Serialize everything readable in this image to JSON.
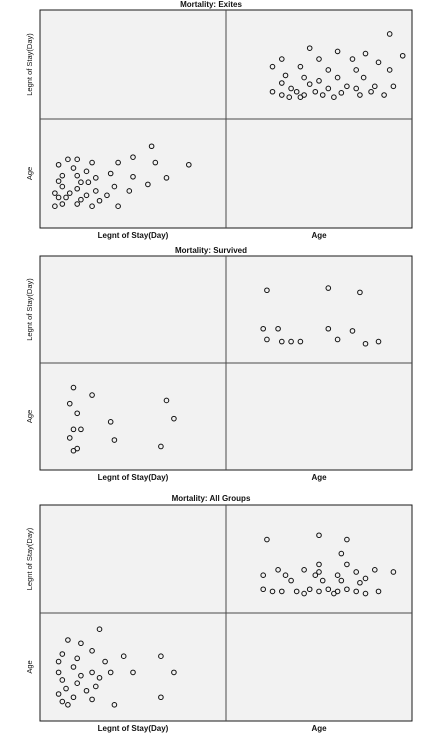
{
  "chart_data": [
    {
      "type": "scatter",
      "title": "Mortality: Exites",
      "variables": [
        "Legnt of Stay(Day)",
        "Age"
      ],
      "pairs": {
        "age_vs_los": {
          "x_name": "Age",
          "y_name": "Legnt of Stay(Day)",
          "points": [
            [
              0.88,
              0.78
            ],
            [
              0.45,
              0.65
            ],
            [
              0.6,
              0.62
            ],
            [
              0.75,
              0.6
            ],
            [
              0.95,
              0.58
            ],
            [
              0.3,
              0.55
            ],
            [
              0.5,
              0.55
            ],
            [
              0.68,
              0.55
            ],
            [
              0.82,
              0.52
            ],
            [
              0.25,
              0.48
            ],
            [
              0.4,
              0.48
            ],
            [
              0.55,
              0.45
            ],
            [
              0.7,
              0.45
            ],
            [
              0.88,
              0.45
            ],
            [
              0.32,
              0.4
            ],
            [
              0.42,
              0.38
            ],
            [
              0.6,
              0.38
            ],
            [
              0.74,
              0.38
            ],
            [
              0.5,
              0.35
            ],
            [
              0.3,
              0.33
            ],
            [
              0.45,
              0.32
            ],
            [
              0.65,
              0.3
            ],
            [
              0.8,
              0.3
            ],
            [
              0.9,
              0.3
            ],
            [
              0.35,
              0.28
            ],
            [
              0.55,
              0.28
            ],
            [
              0.7,
              0.28
            ],
            [
              0.25,
              0.25
            ],
            [
              0.38,
              0.25
            ],
            [
              0.48,
              0.25
            ],
            [
              0.62,
              0.24
            ],
            [
              0.78,
              0.25
            ],
            [
              0.3,
              0.22
            ],
            [
              0.42,
              0.22
            ],
            [
              0.52,
              0.22
            ],
            [
              0.72,
              0.22
            ],
            [
              0.34,
              0.2
            ],
            [
              0.4,
              0.2
            ],
            [
              0.58,
              0.2
            ],
            [
              0.85,
              0.22
            ]
          ]
        },
        "los_vs_age": {
          "x_name": "Legnt of Stay(Day)",
          "y_name": "Age",
          "points": [
            [
              0.6,
              0.75
            ],
            [
              0.5,
              0.65
            ],
            [
              0.15,
              0.63
            ],
            [
              0.2,
              0.63
            ],
            [
              0.28,
              0.6
            ],
            [
              0.42,
              0.6
            ],
            [
              0.62,
              0.6
            ],
            [
              0.8,
              0.58
            ],
            [
              0.1,
              0.58
            ],
            [
              0.18,
              0.55
            ],
            [
              0.25,
              0.52
            ],
            [
              0.38,
              0.5
            ],
            [
              0.12,
              0.48
            ],
            [
              0.2,
              0.48
            ],
            [
              0.3,
              0.46
            ],
            [
              0.5,
              0.47
            ],
            [
              0.68,
              0.46
            ],
            [
              0.1,
              0.43
            ],
            [
              0.22,
              0.42
            ],
            [
              0.26,
              0.42
            ],
            [
              0.4,
              0.38
            ],
            [
              0.58,
              0.4
            ],
            [
              0.12,
              0.38
            ],
            [
              0.2,
              0.36
            ],
            [
              0.3,
              0.34
            ],
            [
              0.48,
              0.34
            ],
            [
              0.08,
              0.32
            ],
            [
              0.16,
              0.32
            ],
            [
              0.25,
              0.3
            ],
            [
              0.36,
              0.3
            ],
            [
              0.1,
              0.28
            ],
            [
              0.14,
              0.28
            ],
            [
              0.22,
              0.26
            ],
            [
              0.32,
              0.25
            ],
            [
              0.12,
              0.22
            ],
            [
              0.2,
              0.22
            ],
            [
              0.28,
              0.2
            ],
            [
              0.42,
              0.2
            ],
            [
              0.08,
              0.2
            ]
          ]
        }
      }
    },
    {
      "type": "scatter",
      "title": "Mortality: Survived",
      "variables": [
        "Legnt of Stay(Day)",
        "Age"
      ],
      "pairs": {
        "age_vs_los": {
          "x_name": "Age",
          "y_name": "Legnt of Stay(Day)",
          "points": [
            [
              0.22,
              0.68
            ],
            [
              0.55,
              0.7
            ],
            [
              0.72,
              0.66
            ],
            [
              0.2,
              0.32
            ],
            [
              0.28,
              0.32
            ],
            [
              0.55,
              0.32
            ],
            [
              0.68,
              0.3
            ],
            [
              0.22,
              0.22
            ],
            [
              0.3,
              0.2
            ],
            [
              0.35,
              0.2
            ],
            [
              0.4,
              0.2
            ],
            [
              0.6,
              0.22
            ],
            [
              0.75,
              0.18
            ],
            [
              0.82,
              0.2
            ]
          ]
        },
        "los_vs_age": {
          "x_name": "Legnt of Stay(Day)",
          "y_name": "Age",
          "points": [
            [
              0.18,
              0.77
            ],
            [
              0.28,
              0.7
            ],
            [
              0.16,
              0.62
            ],
            [
              0.68,
              0.65
            ],
            [
              0.2,
              0.53
            ],
            [
              0.38,
              0.45
            ],
            [
              0.72,
              0.48
            ],
            [
              0.18,
              0.38
            ],
            [
              0.22,
              0.38
            ],
            [
              0.16,
              0.3
            ],
            [
              0.4,
              0.28
            ],
            [
              0.2,
              0.2
            ],
            [
              0.65,
              0.22
            ],
            [
              0.18,
              0.18
            ]
          ]
        }
      }
    },
    {
      "type": "scatter",
      "title": "Mortality: All Groups",
      "variables": [
        "Legnt of Stay(Day)",
        "Age"
      ],
      "pairs": {
        "age_vs_los": {
          "x_name": "Age",
          "y_name": "Legnt of Stay(Day)",
          "points": [
            [
              0.22,
              0.68
            ],
            [
              0.5,
              0.72
            ],
            [
              0.65,
              0.68
            ],
            [
              0.62,
              0.55
            ],
            [
              0.5,
              0.45
            ],
            [
              0.65,
              0.45
            ],
            [
              0.28,
              0.4
            ],
            [
              0.42,
              0.4
            ],
            [
              0.5,
              0.38
            ],
            [
              0.7,
              0.38
            ],
            [
              0.8,
              0.4
            ],
            [
              0.9,
              0.38
            ],
            [
              0.2,
              0.35
            ],
            [
              0.32,
              0.35
            ],
            [
              0.48,
              0.35
            ],
            [
              0.6,
              0.35
            ],
            [
              0.75,
              0.32
            ],
            [
              0.35,
              0.3
            ],
            [
              0.52,
              0.3
            ],
            [
              0.62,
              0.3
            ],
            [
              0.72,
              0.28
            ],
            [
              0.2,
              0.22
            ],
            [
              0.3,
              0.2
            ],
            [
              0.38,
              0.2
            ],
            [
              0.45,
              0.22
            ],
            [
              0.5,
              0.2
            ],
            [
              0.55,
              0.22
            ],
            [
              0.6,
              0.2
            ],
            [
              0.65,
              0.22
            ],
            [
              0.7,
              0.2
            ],
            [
              0.75,
              0.18
            ],
            [
              0.82,
              0.2
            ],
            [
              0.25,
              0.2
            ],
            [
              0.42,
              0.18
            ],
            [
              0.58,
              0.18
            ]
          ]
        },
        "los_vs_age": {
          "x_name": "Legnt of Stay(Day)",
          "y_name": "Age",
          "points": [
            [
              0.32,
              0.85
            ],
            [
              0.15,
              0.75
            ],
            [
              0.22,
              0.72
            ],
            [
              0.28,
              0.65
            ],
            [
              0.45,
              0.6
            ],
            [
              0.65,
              0.6
            ],
            [
              0.12,
              0.62
            ],
            [
              0.2,
              0.58
            ],
            [
              0.35,
              0.55
            ],
            [
              0.72,
              0.45
            ],
            [
              0.1,
              0.55
            ],
            [
              0.18,
              0.5
            ],
            [
              0.28,
              0.45
            ],
            [
              0.38,
              0.45
            ],
            [
              0.5,
              0.45
            ],
            [
              0.1,
              0.45
            ],
            [
              0.22,
              0.42
            ],
            [
              0.32,
              0.4
            ],
            [
              0.12,
              0.38
            ],
            [
              0.2,
              0.35
            ],
            [
              0.3,
              0.32
            ],
            [
              0.14,
              0.3
            ],
            [
              0.25,
              0.28
            ],
            [
              0.1,
              0.25
            ],
            [
              0.18,
              0.22
            ],
            [
              0.28,
              0.2
            ],
            [
              0.12,
              0.18
            ],
            [
              0.65,
              0.22
            ],
            [
              0.15,
              0.15
            ],
            [
              0.4,
              0.15
            ]
          ]
        }
      }
    }
  ]
}
